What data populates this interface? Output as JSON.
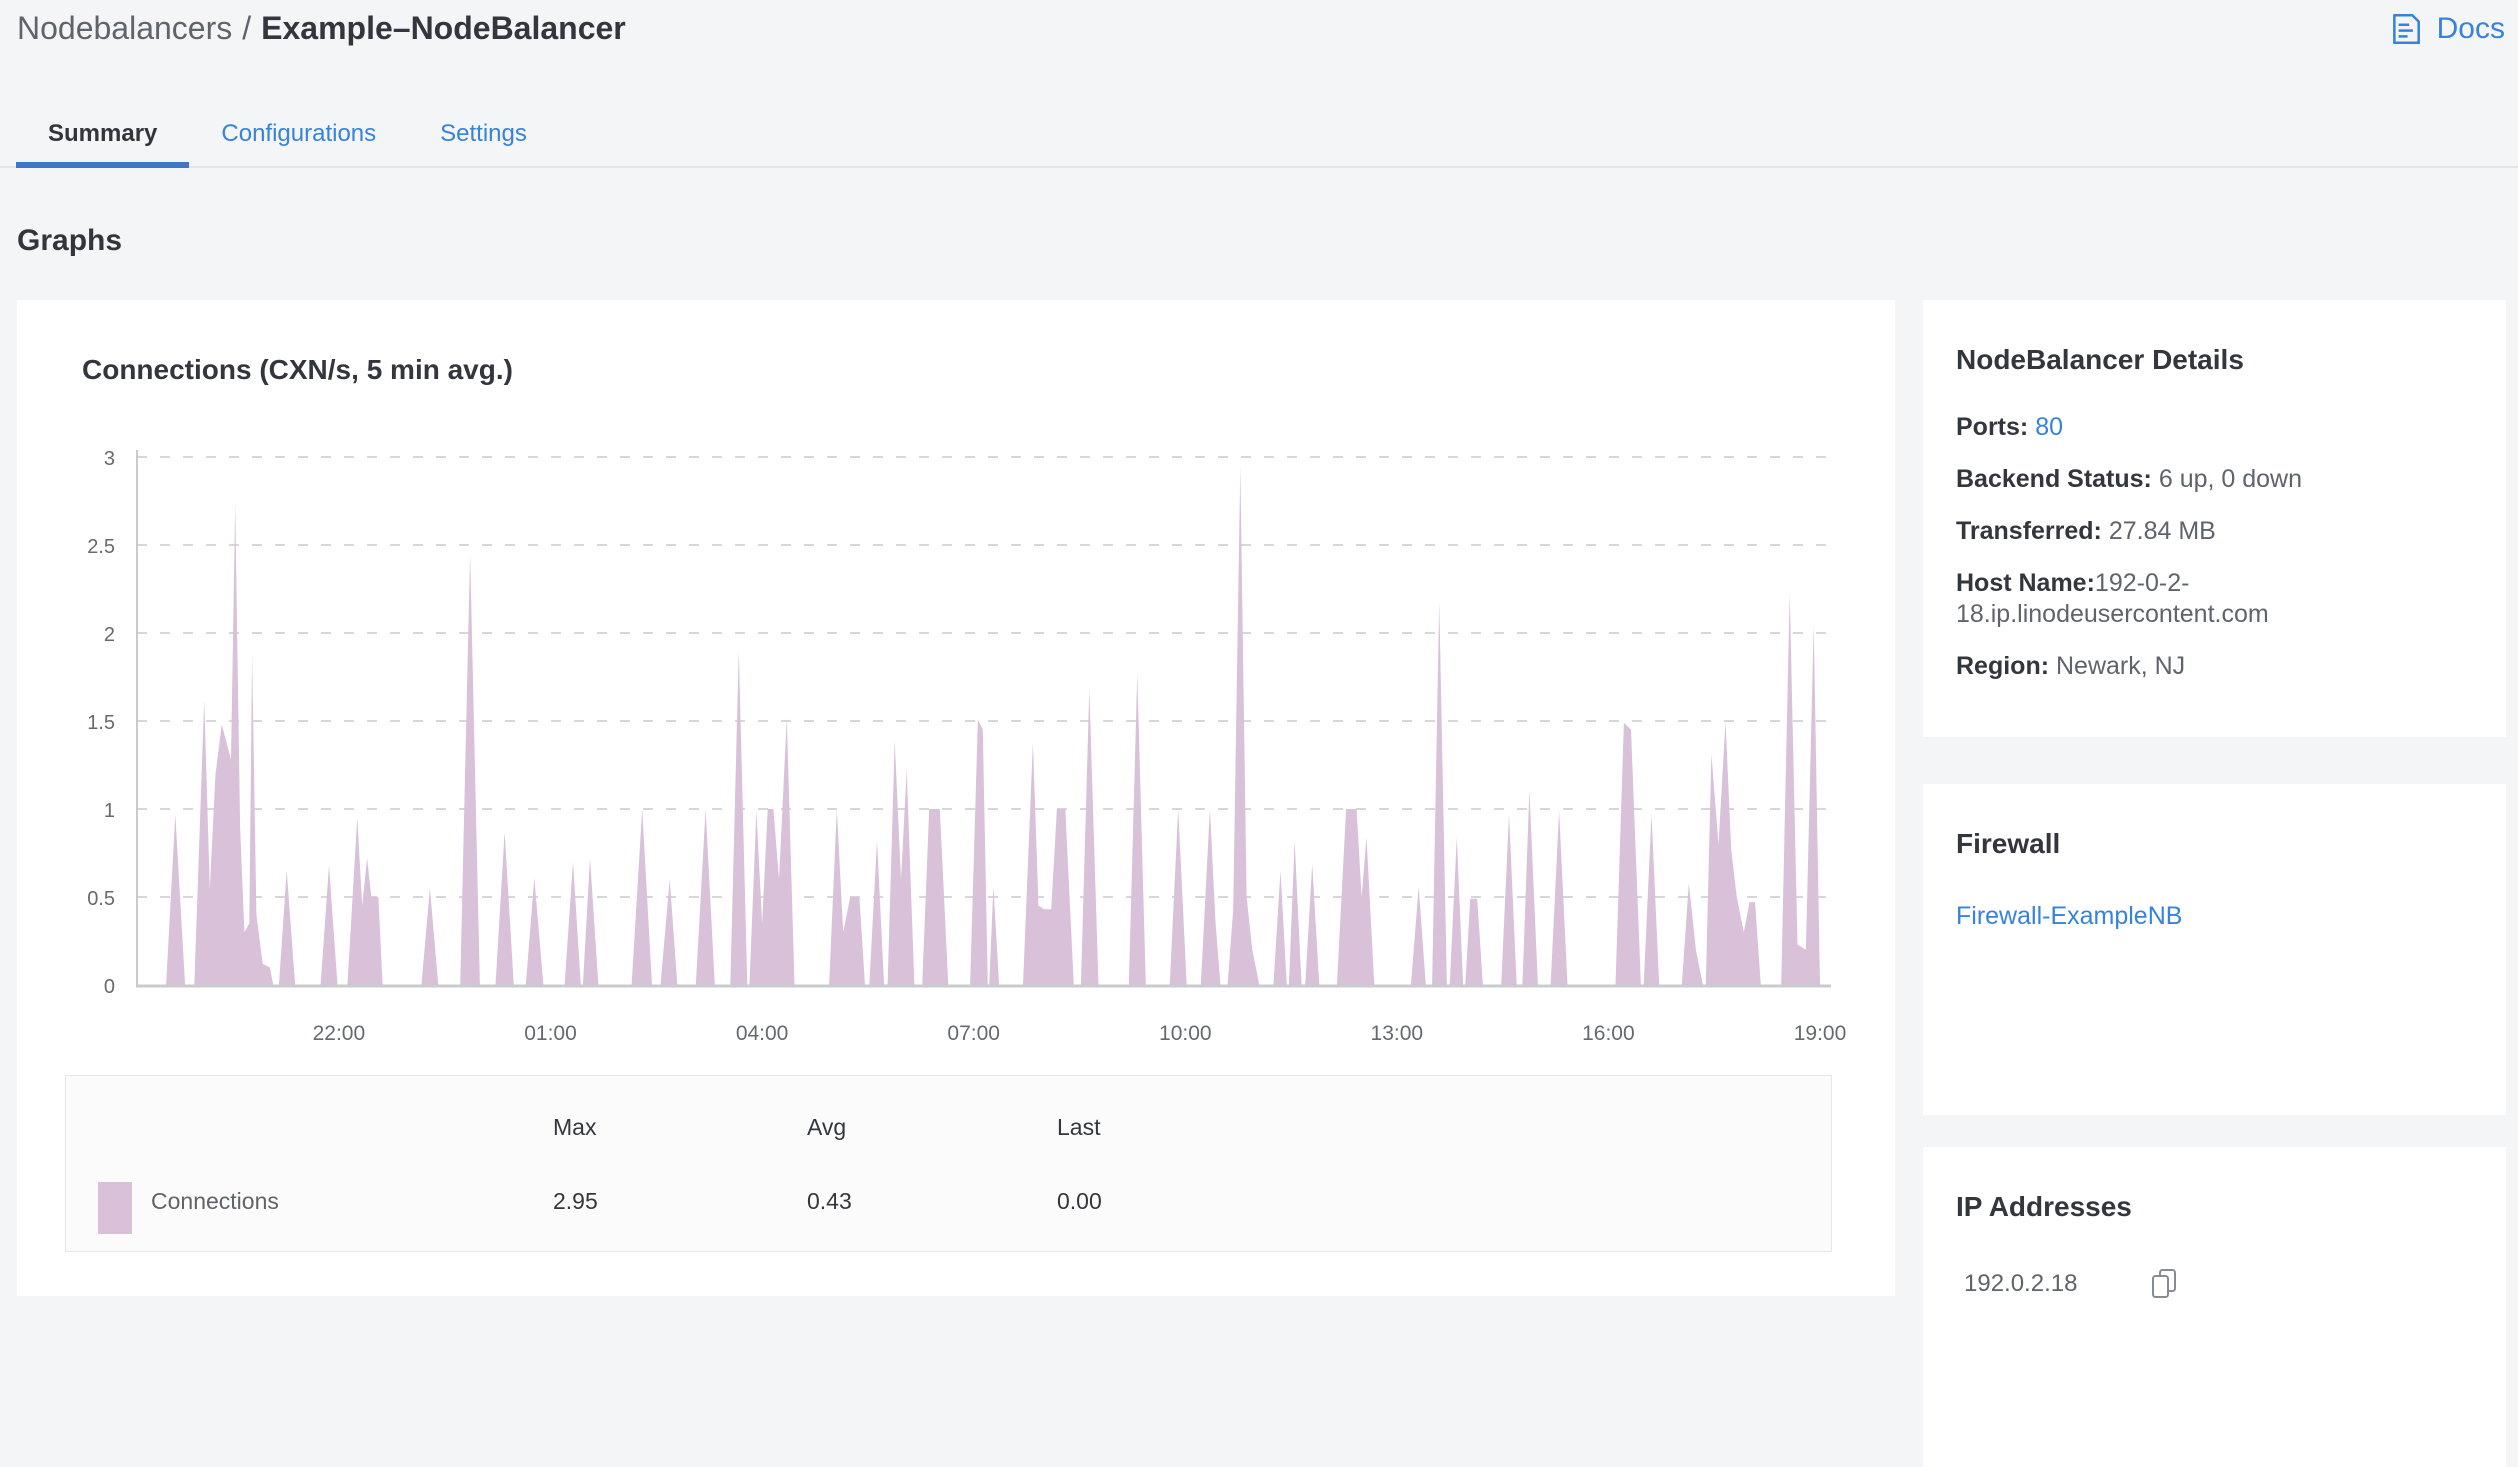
{
  "breadcrumb": {
    "section": "Nodebalancers",
    "separator": "/",
    "current": "Example–NodeBalancer"
  },
  "header": {
    "docs_label": "Docs"
  },
  "tabs": [
    {
      "label": "Summary",
      "active": true
    },
    {
      "label": "Configurations",
      "active": false
    },
    {
      "label": "Settings",
      "active": false
    }
  ],
  "page_heading": "Graphs",
  "chart_card": {
    "title": "Connections (CXN/s, 5 min avg.)"
  },
  "chart_data": {
    "type": "area",
    "title": "Connections (CXN/s, 5 min avg.)",
    "series": [
      {
        "name": "Connections",
        "color": "#d9c1d9",
        "stats": {
          "max": 2.95,
          "avg": 0.43,
          "last": 0.0
        }
      }
    ],
    "x_axis": {
      "t_definition": "hours after 19:00 of previous day",
      "range": [
        0.15,
        24
      ],
      "ticks": [
        {
          "t": 3,
          "label": "22:00"
        },
        {
          "t": 6,
          "label": "01:00"
        },
        {
          "t": 9,
          "label": "04:00"
        },
        {
          "t": 12,
          "label": "07:00"
        },
        {
          "t": 15,
          "label": "10:00"
        },
        {
          "t": 18,
          "label": "13:00"
        },
        {
          "t": 21,
          "label": "16:00"
        },
        {
          "t": 24,
          "label": "19:00"
        }
      ]
    },
    "y_axis": {
      "ticks": [
        0,
        0.5,
        1,
        1.5,
        2,
        2.5,
        3
      ],
      "range": [
        0,
        3
      ]
    },
    "grid": "dashed horizontal",
    "legend_position": "table below chart",
    "points": [
      [
        0.15,
        0
      ],
      [
        0.55,
        0
      ],
      [
        0.68,
        0.97
      ],
      [
        0.82,
        0
      ],
      [
        0.95,
        0
      ],
      [
        1.09,
        1.62
      ],
      [
        1.17,
        0.55
      ],
      [
        1.25,
        1.2
      ],
      [
        1.34,
        1.48
      ],
      [
        1.47,
        1.28
      ],
      [
        1.53,
        2.74
      ],
      [
        1.6,
        0.9
      ],
      [
        1.66,
        0.3
      ],
      [
        1.73,
        0.35
      ],
      [
        1.77,
        1.88
      ],
      [
        1.83,
        0.4
      ],
      [
        1.92,
        0.12
      ],
      [
        2.02,
        0.1
      ],
      [
        2.07,
        0
      ],
      [
        2.15,
        0
      ],
      [
        2.26,
        0.65
      ],
      [
        2.38,
        0
      ],
      [
        2.74,
        0
      ],
      [
        2.86,
        0.68
      ],
      [
        2.98,
        0
      ],
      [
        3.12,
        0
      ],
      [
        3.26,
        0.95
      ],
      [
        3.33,
        0.45
      ],
      [
        3.4,
        0.72
      ],
      [
        3.46,
        0.5
      ],
      [
        3.56,
        0.5
      ],
      [
        3.62,
        0
      ],
      [
        4.17,
        0
      ],
      [
        4.29,
        0.55
      ],
      [
        4.41,
        0
      ],
      [
        4.72,
        0
      ],
      [
        4.86,
        2.45
      ],
      [
        5.0,
        0
      ],
      [
        5.22,
        0
      ],
      [
        5.35,
        0.87
      ],
      [
        5.48,
        0
      ],
      [
        5.65,
        0
      ],
      [
        5.77,
        0.61
      ],
      [
        5.9,
        0
      ],
      [
        6.2,
        0
      ],
      [
        6.32,
        0.7
      ],
      [
        6.43,
        0
      ],
      [
        6.46,
        0
      ],
      [
        6.56,
        0.72
      ],
      [
        6.68,
        0
      ],
      [
        7.15,
        0
      ],
      [
        7.3,
        1.0
      ],
      [
        7.44,
        0
      ],
      [
        7.56,
        0
      ],
      [
        7.69,
        0.6
      ],
      [
        7.8,
        0
      ],
      [
        8.06,
        0
      ],
      [
        8.2,
        1.0
      ],
      [
        8.33,
        0
      ],
      [
        8.55,
        0
      ],
      [
        8.67,
        1.9
      ],
      [
        8.79,
        0
      ],
      [
        8.82,
        0
      ],
      [
        8.92,
        0.99
      ],
      [
        9.0,
        0.35
      ],
      [
        9.08,
        1.0
      ],
      [
        9.16,
        1.0
      ],
      [
        9.24,
        0.6
      ],
      [
        9.35,
        1.52
      ],
      [
        9.46,
        0
      ],
      [
        9.95,
        0
      ],
      [
        10.06,
        1.0
      ],
      [
        10.15,
        0.3
      ],
      [
        10.25,
        0.5
      ],
      [
        10.38,
        0.5
      ],
      [
        10.46,
        0
      ],
      [
        10.52,
        0
      ],
      [
        10.63,
        0.82
      ],
      [
        10.73,
        0
      ],
      [
        10.78,
        0
      ],
      [
        10.88,
        1.39
      ],
      [
        10.97,
        0.6
      ],
      [
        11.05,
        1.22
      ],
      [
        11.16,
        0
      ],
      [
        11.27,
        0
      ],
      [
        11.37,
        1.0
      ],
      [
        11.52,
        1.0
      ],
      [
        11.64,
        0
      ],
      [
        11.95,
        0
      ],
      [
        12.06,
        1.51
      ],
      [
        12.13,
        1.45
      ],
      [
        12.2,
        0
      ],
      [
        12.22,
        0
      ],
      [
        12.28,
        0.56
      ],
      [
        12.36,
        0
      ],
      [
        12.7,
        0
      ],
      [
        12.84,
        1.38
      ],
      [
        12.92,
        0.45
      ],
      [
        13.0,
        0.43
      ],
      [
        13.1,
        0.43
      ],
      [
        13.18,
        1.0
      ],
      [
        13.3,
        1.0
      ],
      [
        13.42,
        0
      ],
      [
        13.52,
        0
      ],
      [
        13.64,
        1.68
      ],
      [
        13.77,
        0
      ],
      [
        14.2,
        0
      ],
      [
        14.32,
        1.77
      ],
      [
        14.44,
        0
      ],
      [
        14.78,
        0
      ],
      [
        14.9,
        1.0
      ],
      [
        15.02,
        0
      ],
      [
        15.22,
        0
      ],
      [
        15.35,
        1.0
      ],
      [
        15.43,
        0.35
      ],
      [
        15.5,
        0
      ],
      [
        15.6,
        0
      ],
      [
        15.68,
        0.43
      ],
      [
        15.78,
        2.95
      ],
      [
        15.87,
        0.5
      ],
      [
        15.95,
        0.2
      ],
      [
        16.05,
        0
      ],
      [
        16.25,
        0
      ],
      [
        16.35,
        0.65
      ],
      [
        16.44,
        0
      ],
      [
        16.47,
        0
      ],
      [
        16.55,
        0.82
      ],
      [
        16.65,
        0
      ],
      [
        16.7,
        0
      ],
      [
        16.8,
        0.69
      ],
      [
        16.9,
        0
      ],
      [
        17.15,
        0
      ],
      [
        17.28,
        1.0
      ],
      [
        17.43,
        1.0
      ],
      [
        17.5,
        0.5
      ],
      [
        17.57,
        0.84
      ],
      [
        17.68,
        0
      ],
      [
        18.2,
        0
      ],
      [
        18.31,
        0.56
      ],
      [
        18.41,
        0
      ],
      [
        18.5,
        0
      ],
      [
        18.6,
        2.18
      ],
      [
        18.71,
        0
      ],
      [
        18.75,
        0
      ],
      [
        18.85,
        0.84
      ],
      [
        18.94,
        0
      ],
      [
        18.97,
        0
      ],
      [
        19.04,
        0.49
      ],
      [
        19.14,
        0.49
      ],
      [
        19.22,
        0
      ],
      [
        19.48,
        0
      ],
      [
        19.59,
        0.97
      ],
      [
        19.7,
        0
      ],
      [
        19.78,
        0
      ],
      [
        19.88,
        1.11
      ],
      [
        20.0,
        0
      ],
      [
        20.18,
        0
      ],
      [
        20.3,
        0.99
      ],
      [
        20.42,
        0
      ],
      [
        21.1,
        0
      ],
      [
        21.22,
        1.49
      ],
      [
        21.32,
        1.45
      ],
      [
        21.46,
        0
      ],
      [
        21.5,
        0
      ],
      [
        21.61,
        0.97
      ],
      [
        21.72,
        0
      ],
      [
        22.04,
        0
      ],
      [
        22.14,
        0.58
      ],
      [
        22.24,
        0.2
      ],
      [
        22.34,
        0
      ],
      [
        22.38,
        0
      ],
      [
        22.46,
        1.31
      ],
      [
        22.56,
        0.8
      ],
      [
        22.66,
        1.5
      ],
      [
        22.74,
        0.77
      ],
      [
        22.82,
        0.5
      ],
      [
        22.92,
        0.3
      ],
      [
        23.0,
        0.47
      ],
      [
        23.08,
        0.47
      ],
      [
        23.16,
        0
      ],
      [
        23.45,
        0
      ],
      [
        23.57,
        2.23
      ],
      [
        23.68,
        0.23
      ],
      [
        23.8,
        0.2
      ],
      [
        23.91,
        2.05
      ],
      [
        24.0,
        0
      ]
    ]
  },
  "legend_table": {
    "columns": [
      "Max",
      "Avg",
      "Last"
    ],
    "rows": [
      {
        "name": "Connections",
        "swatch_color": "#d9c1d9",
        "max": "2.95",
        "avg": "0.43",
        "last": "0.00"
      }
    ]
  },
  "sidebar": {
    "details": {
      "title": "NodeBalancer Details",
      "ports_label": "Ports:",
      "ports_value": "80",
      "backend_label": "Backend Status:",
      "backend_value": "6 up, 0 down",
      "transferred_label": "Transferred:",
      "transferred_value": "27.84 MB",
      "hostname_label": "Host Name:",
      "hostname_value": "192-0-2-18.ip.linodeusercontent.com",
      "region_label": "Region:",
      "region_value": "Newark, NJ"
    },
    "firewall": {
      "title": "Firewall",
      "link": "Firewall-ExampleNB"
    },
    "ips": {
      "title": "IP Addresses",
      "ip": "192.0.2.18"
    }
  },
  "colors": {
    "accent": "#3683dc",
    "tab_underline": "#4076c7",
    "series_purple": "#d9c1d9",
    "page_bg": "#f4f5f6"
  }
}
